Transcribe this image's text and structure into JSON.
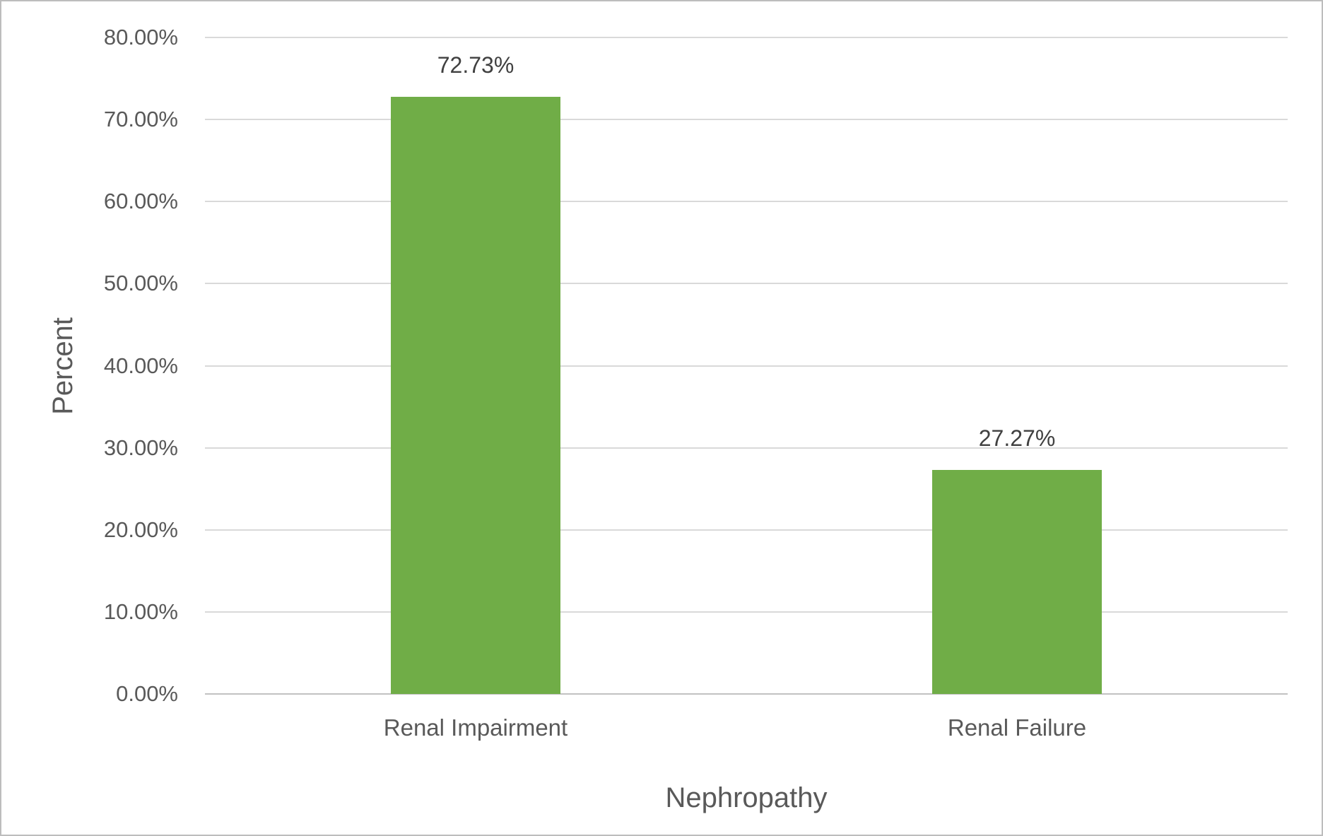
{
  "chart_data": {
    "type": "bar",
    "title": "",
    "xlabel": "Nephropathy",
    "ylabel": "Percent",
    "categories": [
      "Renal Impairment",
      "Renal Failure"
    ],
    "values": [
      72.73,
      27.27
    ],
    "data_labels": [
      "72.73%",
      "27.27%"
    ],
    "series": [
      {
        "name": "Percent",
        "values": [
          72.73,
          27.27
        ]
      }
    ],
    "ylim": [
      0,
      80
    ],
    "y_tick_step": 10,
    "y_ticks": [
      {
        "value": 80,
        "label": "80.00%"
      },
      {
        "value": 70,
        "label": "70.00%"
      },
      {
        "value": 60,
        "label": "60.00%"
      },
      {
        "value": 50,
        "label": "50.00%"
      },
      {
        "value": 40,
        "label": "40.00%"
      },
      {
        "value": 30,
        "label": "30.00%"
      },
      {
        "value": 20,
        "label": "20.00%"
      },
      {
        "value": 10,
        "label": "10.00%"
      },
      {
        "value": 0,
        "label": "0.00%"
      }
    ],
    "grid": true,
    "legend": false,
    "colors": {
      "bar_fill": "#70AD47",
      "text": "#595959",
      "gridline": "#D9D9D9",
      "axis_line": "#C2C2C2",
      "border": "#BDBDBD",
      "background": "#FFFFFF"
    }
  }
}
